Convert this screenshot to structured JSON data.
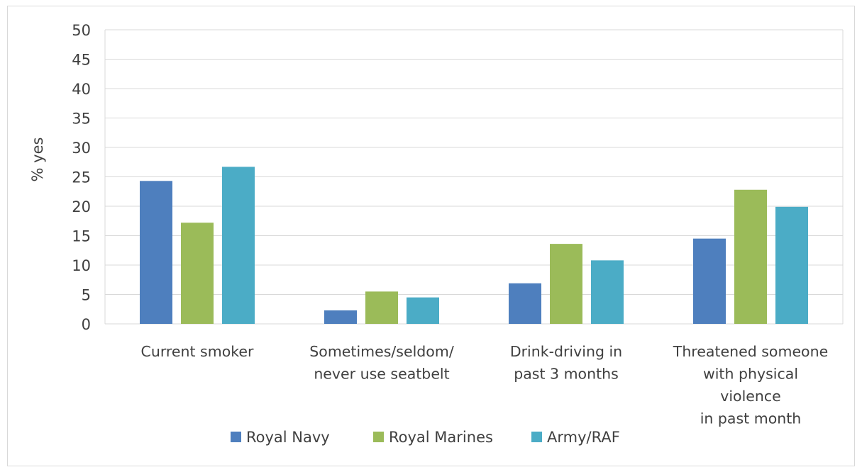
{
  "chart_data": {
    "type": "bar",
    "title": "",
    "xlabel": "",
    "ylabel": "% yes",
    "ylim": [
      0,
      50
    ],
    "yticks": [
      0,
      5,
      10,
      15,
      20,
      25,
      30,
      35,
      40,
      45,
      50
    ],
    "grid": true,
    "legend_position": "bottom",
    "categories": [
      [
        "Current smoker"
      ],
      [
        "Sometimes/seldom/",
        "never use seatbelt"
      ],
      [
        "Drink-driving in",
        "past 3 months"
      ],
      [
        "Threatened someone",
        "with physical",
        "violence",
        "in past month"
      ]
    ],
    "series": [
      {
        "name": "Royal Navy",
        "color": "#4e7fbe",
        "values": [
          24.3,
          2.3,
          6.9,
          14.5
        ]
      },
      {
        "name": "Royal Marines",
        "color": "#9bbb59",
        "values": [
          17.2,
          5.5,
          13.6,
          22.8
        ]
      },
      {
        "name": "Army/RAF",
        "color": "#4bacc6",
        "values": [
          26.7,
          4.5,
          10.8,
          19.9
        ]
      }
    ]
  }
}
